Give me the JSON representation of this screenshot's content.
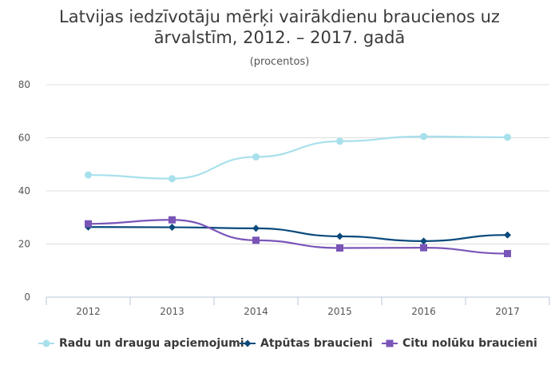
{
  "chart_data": {
    "type": "line",
    "title_lines": [
      "Latvijas iedzīvotāju mērķi vairākdienu braucienos uz",
      "ārvalstīm, 2012. – 2017. gadā"
    ],
    "subtitle": "(procentos)",
    "xlabel": "",
    "ylabel": "",
    "categories": [
      "2012",
      "2013",
      "2014",
      "2015",
      "2016",
      "2017"
    ],
    "ylim": [
      0,
      80
    ],
    "yticks": [
      0,
      20,
      40,
      60,
      80
    ],
    "grid": true,
    "legend_position": "bottom",
    "series": [
      {
        "name": "Radu un draugu apciemojumi",
        "color": "#a8e0ec",
        "marker": "circle",
        "values": [
          46,
          44.6,
          52.8,
          58.7,
          60.5,
          60.2
        ]
      },
      {
        "name": "Atpūtas braucieni",
        "color": "#0a4a7c",
        "marker": "diamond",
        "values": [
          26.4,
          26.3,
          25.9,
          22.9,
          21.1,
          23.4
        ]
      },
      {
        "name": "Citu nolūku braucieni",
        "color": "#7a55b8",
        "marker": "square",
        "values": [
          27.6,
          29.1,
          21.4,
          18.5,
          18.6,
          16.4
        ]
      }
    ]
  }
}
